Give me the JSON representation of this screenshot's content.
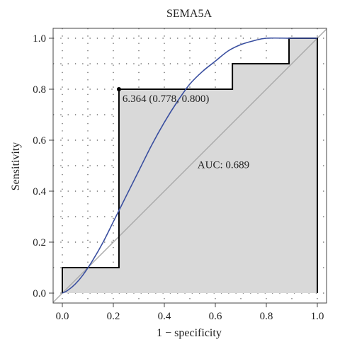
{
  "chart_data": {
    "type": "line",
    "title": "SEMA5A",
    "xlabel": "1 − specificity",
    "ylabel": "Sensitivity",
    "xlim": [
      0.0,
      1.0
    ],
    "ylim": [
      0.0,
      1.0
    ],
    "x_ticks": [
      "0.0",
      "0.2",
      "0.4",
      "0.6",
      "0.8",
      "1.0"
    ],
    "y_ticks": [
      "0.0",
      "0.2",
      "0.4",
      "0.6",
      "0.8",
      "1.0"
    ],
    "grid": "dotted",
    "series": [
      {
        "kind": "empirical_roc",
        "color": "#000000",
        "fill": "#d9d9d9",
        "points": [
          [
            0,
            0
          ],
          [
            0,
            0.1
          ],
          [
            0.222,
            0.1
          ],
          [
            0.222,
            0.8
          ],
          [
            0.667,
            0.8
          ],
          [
            0.667,
            0.9
          ],
          [
            0.889,
            0.9
          ],
          [
            0.889,
            1.0
          ],
          [
            1.0,
            1.0
          ],
          [
            1.0,
            0
          ]
        ]
      },
      {
        "kind": "smoothed_roc",
        "color": "#3a4fa0",
        "points": [
          [
            0,
            0
          ],
          [
            0.02,
            0.01
          ],
          [
            0.05,
            0.035
          ],
          [
            0.08,
            0.07
          ],
          [
            0.12,
            0.13
          ],
          [
            0.16,
            0.2
          ],
          [
            0.2,
            0.28
          ],
          [
            0.25,
            0.38
          ],
          [
            0.3,
            0.48
          ],
          [
            0.35,
            0.58
          ],
          [
            0.4,
            0.67
          ],
          [
            0.45,
            0.75
          ],
          [
            0.5,
            0.82
          ],
          [
            0.55,
            0.87
          ],
          [
            0.6,
            0.91
          ],
          [
            0.65,
            0.95
          ],
          [
            0.7,
            0.975
          ],
          [
            0.75,
            0.99
          ],
          [
            0.8,
            1.0
          ],
          [
            0.9,
            1.0
          ],
          [
            1.0,
            1.0
          ]
        ]
      },
      {
        "kind": "reference_diagonal",
        "color": "#aaaaaa",
        "points": [
          [
            0,
            0
          ],
          [
            1,
            1
          ]
        ]
      }
    ],
    "best_point": {
      "x": 0.222,
      "y": 0.8,
      "label": "6.364 (0.778, 0.800)"
    },
    "annotations": [
      {
        "text": "AUC: 0.689",
        "x": 0.53,
        "y": 0.49
      }
    ]
  }
}
